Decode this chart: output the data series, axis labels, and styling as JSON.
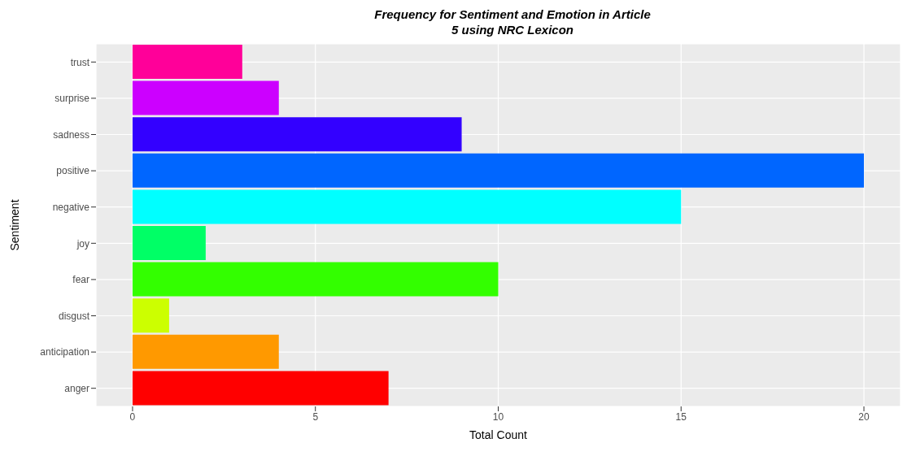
{
  "chart_data": {
    "type": "bar",
    "orientation": "horizontal",
    "title": "Frequency for Sentiment and Emotion in Article 5 using NRC Lexicon",
    "xlabel": "Total Count",
    "ylabel": "Sentiment",
    "categories": [
      "trust",
      "surprise",
      "sadness",
      "positive",
      "negative",
      "joy",
      "fear",
      "disgust",
      "anticipation",
      "anger"
    ],
    "values": [
      3,
      4,
      9,
      20,
      15,
      2,
      10,
      1,
      4,
      7
    ],
    "colors": [
      "#ff0099",
      "#cc00ff",
      "#3300ff",
      "#0066ff",
      "#00ffff",
      "#00ff66",
      "#33ff00",
      "#ccff00",
      "#ff9900",
      "#ff0000"
    ],
    "xlim": [
      -1,
      21
    ],
    "xticks": [
      0,
      5,
      10,
      15,
      20
    ],
    "grid": true
  }
}
